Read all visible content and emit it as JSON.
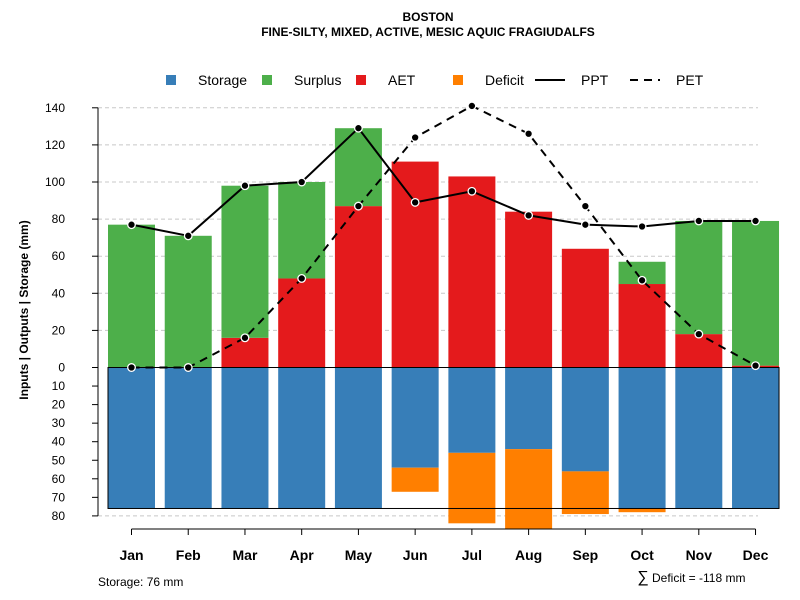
{
  "chart_data": {
    "type": "bar",
    "title": "BOSTON",
    "subtitle": "FINE-SILTY, MIXED, ACTIVE, MESIC AQUIC FRAGIUDALFS",
    "ylabel": "Inputs | Outputs | Storage    (mm)",
    "categories": [
      "Jan",
      "Feb",
      "Mar",
      "Apr",
      "May",
      "Jun",
      "Jul",
      "Aug",
      "Sep",
      "Oct",
      "Nov",
      "Dec"
    ],
    "ylim_top": [
      0,
      140
    ],
    "ylim_bottom": [
      0,
      80
    ],
    "y_ticks_top": [
      "0",
      "20",
      "40",
      "60",
      "80",
      "100",
      "120",
      "140"
    ],
    "y_ticks_bottom": [
      "0",
      "10",
      "20",
      "30",
      "40",
      "50",
      "60",
      "70",
      "80"
    ],
    "legend": [
      {
        "key": "storage",
        "label": "Storage",
        "kind": "box",
        "color": "#377EB8"
      },
      {
        "key": "surplus",
        "label": "Surplus",
        "kind": "box",
        "color": "#4DAF4A"
      },
      {
        "key": "aet",
        "label": "AET",
        "kind": "box",
        "color": "#E41A1C"
      },
      {
        "key": "deficit",
        "label": "Deficit",
        "kind": "box",
        "color": "#FF7F00"
      },
      {
        "key": "ppt",
        "label": "PPT",
        "kind": "solid",
        "color": "#000000"
      },
      {
        "key": "pet",
        "label": "PET",
        "kind": "dashed",
        "color": "#000000"
      }
    ],
    "series": {
      "aet": [
        0,
        0,
        16,
        48,
        87,
        111,
        103,
        84,
        64,
        45,
        18,
        1
      ],
      "surplus": [
        77,
        71,
        82,
        52,
        42,
        0,
        0,
        0,
        0,
        12,
        61,
        78
      ],
      "storage": [
        76,
        76,
        76,
        76,
        76,
        54,
        46,
        44,
        56,
        76,
        76,
        76
      ],
      "deficit": [
        0,
        0,
        0,
        0,
        0,
        13,
        38,
        43,
        23,
        2,
        0,
        0
      ],
      "ppt": [
        77,
        71,
        98,
        100,
        129,
        89,
        95,
        82,
        77,
        76,
        79,
        79
      ],
      "pet": [
        0,
        0,
        16,
        48,
        87,
        124,
        141,
        126,
        87,
        47,
        18,
        1
      ]
    },
    "storage_capacity": 76,
    "annotations": {
      "storage_text": "Storage: 76 mm",
      "deficit_symbol": "∑",
      "deficit_text": "Deficit = -118 mm"
    }
  }
}
